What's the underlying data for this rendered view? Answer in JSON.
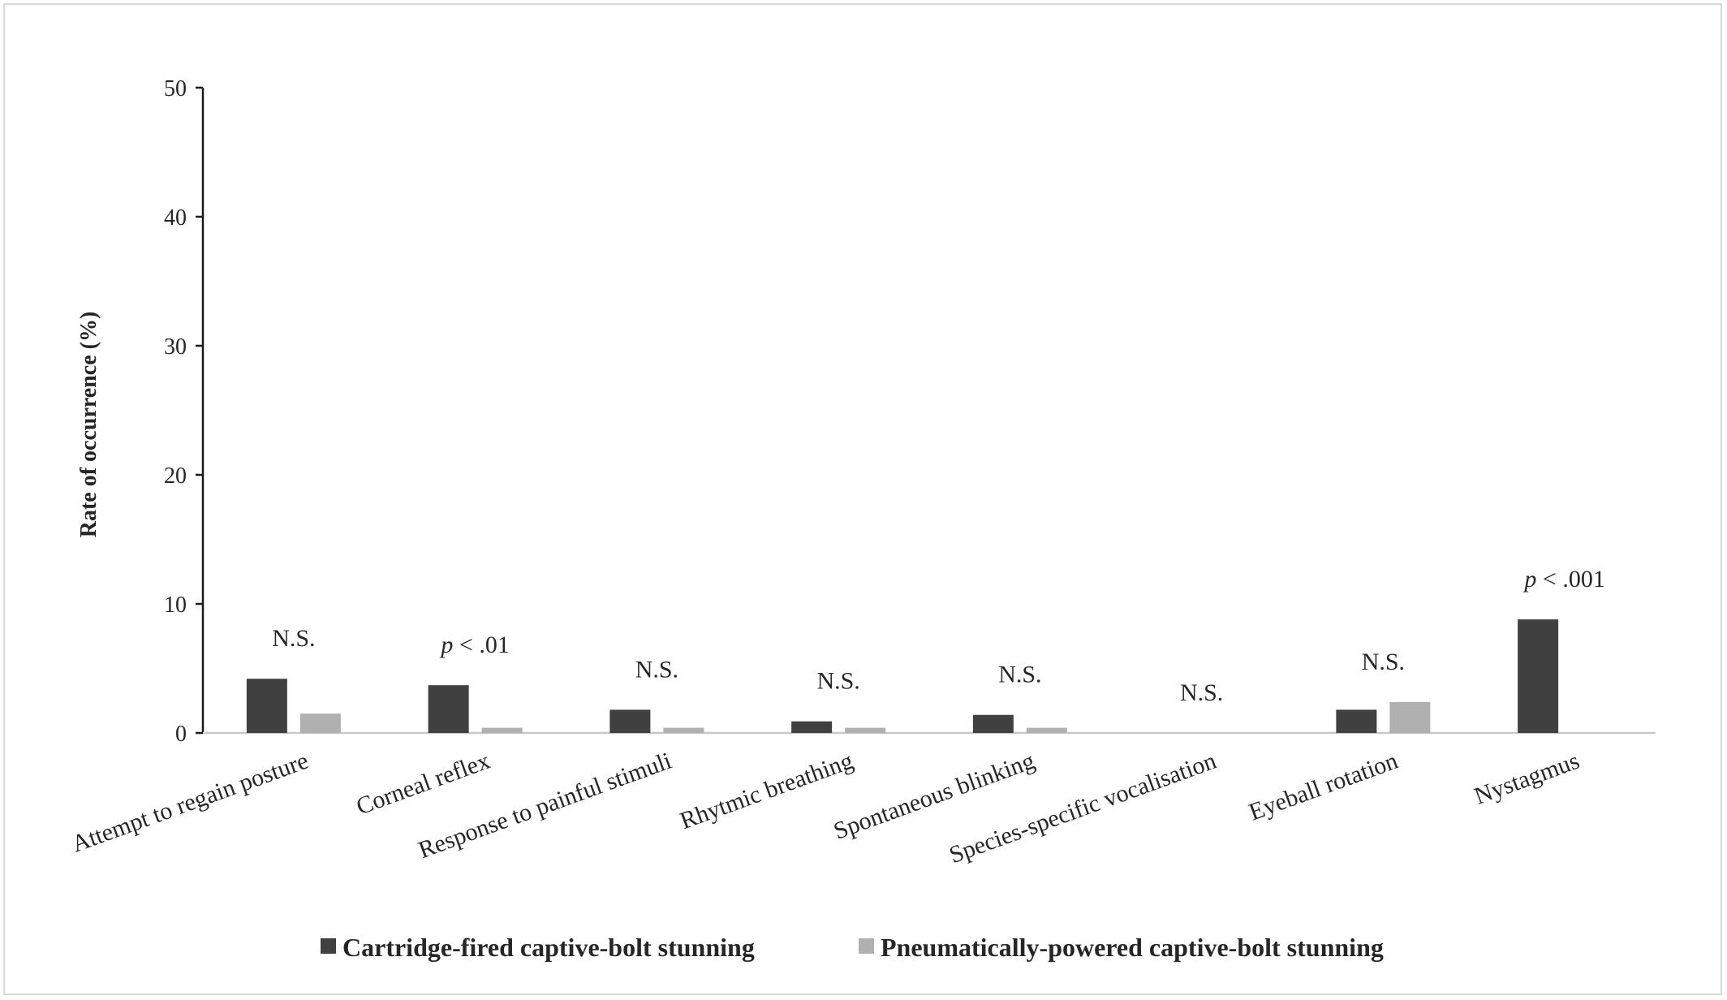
{
  "chart_data": {
    "type": "bar",
    "title": "",
    "xlabel": "",
    "ylabel": "Rate of occurrence (%)",
    "ylim": [
      0,
      50
    ],
    "yticks": [
      0,
      10,
      20,
      30,
      40,
      50
    ],
    "grid": false,
    "legend_position": "bottom",
    "categories": [
      "Attempt to regain posture",
      "Corneal reflex",
      "Response to painful stimuli",
      "Rhytmic breathing",
      "Spontaneous blinking",
      "Species-specific vocalisation",
      "Eyeball rotation",
      "Nystagmus"
    ],
    "series": [
      {
        "name": "Cartridge-fired captive-bolt stunning",
        "color": "#404040",
        "values": [
          4.2,
          3.7,
          1.8,
          0.9,
          1.4,
          0,
          1.8,
          8.8
        ]
      },
      {
        "name": "Pneumatically-powered captive-bolt stunning",
        "color": "#b0b0b0",
        "values": [
          1.5,
          0.4,
          0.4,
          0.4,
          0.4,
          0,
          2.4,
          0
        ]
      }
    ],
    "annotations": [
      {
        "prefix": "",
        "text": "N.S."
      },
      {
        "prefix": "p",
        "text": " < .01"
      },
      {
        "prefix": "",
        "text": "N.S."
      },
      {
        "prefix": "",
        "text": "N.S."
      },
      {
        "prefix": "",
        "text": "N.S."
      },
      {
        "prefix": "",
        "text": "N.S."
      },
      {
        "prefix": "",
        "text": "N.S."
      },
      {
        "prefix": "p",
        "text": " < .001"
      }
    ]
  }
}
